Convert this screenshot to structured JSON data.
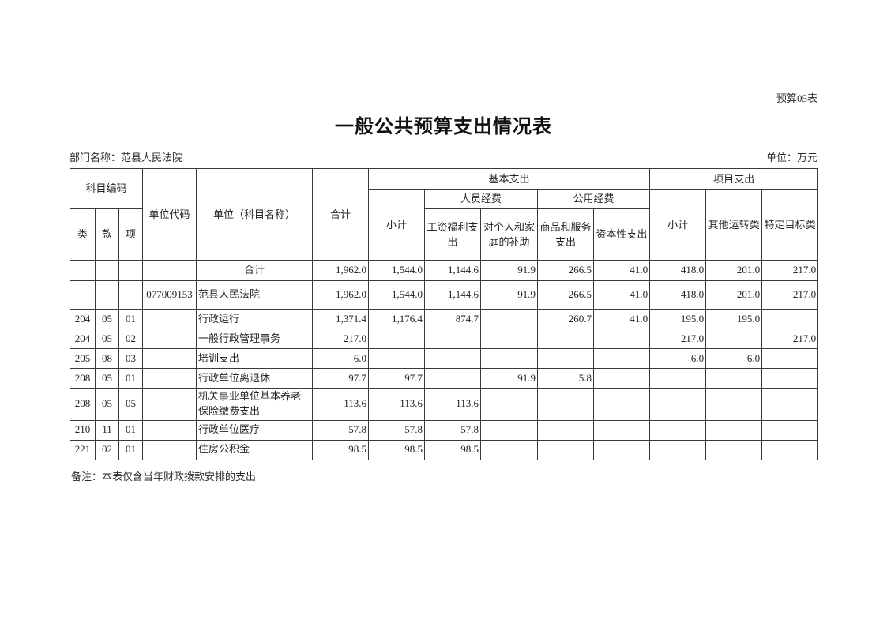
{
  "page": {
    "form_label": "预算05表",
    "title": "一般公共预算支出情况表",
    "department_label": "部门名称：范县人民法院",
    "unit_label": "单位：万元",
    "note": "备注：本表仅含当年财政拨款安排的支出"
  },
  "table": {
    "header": {
      "subject_code": "科目编码",
      "col_class": "类",
      "col_section": "款",
      "col_item": "项",
      "unit_code": "单位代码",
      "unit_name": "单位（科目名称）",
      "total": "合计",
      "basic_expenditure": "基本支出",
      "basic_subtotal": "小计",
      "personnel_funds": "人员经费",
      "wage_welfare": "工资福利支出",
      "family_subsidy": "对个人和家庭的补助",
      "public_funds": "公用经费",
      "goods_services": "商品和服务支出",
      "capital": "资本性支出",
      "project_expenditure": "项目支出",
      "project_subtotal": "小计",
      "other_operation": "其他运转类",
      "specific_target": "特定目标类"
    },
    "rows": [
      {
        "lei": "",
        "kuan": "",
        "xiang": "",
        "code": "",
        "name": "合计",
        "name_align": "center",
        "total": "1,962.0",
        "basic_subtotal": "1,544.0",
        "wage": "1,144.6",
        "subsidy": "91.9",
        "goods": "266.5",
        "capital": "41.0",
        "proj_subtotal": "418.0",
        "other": "201.0",
        "specific": "217.0"
      },
      {
        "lei": "",
        "kuan": "",
        "xiang": "",
        "code": "077009153",
        "name": "范县人民法院",
        "name_align": "left",
        "total": "1,962.0",
        "basic_subtotal": "1,544.0",
        "wage": "1,144.6",
        "subsidy": "91.9",
        "goods": "266.5",
        "capital": "41.0",
        "proj_subtotal": "418.0",
        "other": "201.0",
        "specific": "217.0"
      },
      {
        "lei": "204",
        "kuan": "05",
        "xiang": "01",
        "code": "",
        "name": "行政运行",
        "name_align": "left",
        "total": "1,371.4",
        "basic_subtotal": "1,176.4",
        "wage": "874.7",
        "subsidy": "",
        "goods": "260.7",
        "capital": "41.0",
        "proj_subtotal": "195.0",
        "other": "195.0",
        "specific": ""
      },
      {
        "lei": "204",
        "kuan": "05",
        "xiang": "02",
        "code": "",
        "name": "一般行政管理事务",
        "name_align": "left",
        "total": "217.0",
        "basic_subtotal": "",
        "wage": "",
        "subsidy": "",
        "goods": "",
        "capital": "",
        "proj_subtotal": "217.0",
        "other": "",
        "specific": "217.0"
      },
      {
        "lei": "205",
        "kuan": "08",
        "xiang": "03",
        "code": "",
        "name": "培训支出",
        "name_align": "left",
        "total": "6.0",
        "basic_subtotal": "",
        "wage": "",
        "subsidy": "",
        "goods": "",
        "capital": "",
        "proj_subtotal": "6.0",
        "other": "6.0",
        "specific": ""
      },
      {
        "lei": "208",
        "kuan": "05",
        "xiang": "01",
        "code": "",
        "name": "行政单位离退休",
        "name_align": "left",
        "total": "97.7",
        "basic_subtotal": "97.7",
        "wage": "",
        "subsidy": "91.9",
        "goods": "5.8",
        "capital": "",
        "proj_subtotal": "",
        "other": "",
        "specific": ""
      },
      {
        "lei": "208",
        "kuan": "05",
        "xiang": "05",
        "code": "",
        "name": "机关事业单位基本养老保险缴费支出",
        "name_align": "left",
        "total": "113.6",
        "basic_subtotal": "113.6",
        "wage": "113.6",
        "subsidy": "",
        "goods": "",
        "capital": "",
        "proj_subtotal": "",
        "other": "",
        "specific": ""
      },
      {
        "lei": "210",
        "kuan": "11",
        "xiang": "01",
        "code": "",
        "name": "行政单位医疗",
        "name_align": "left",
        "total": "57.8",
        "basic_subtotal": "57.8",
        "wage": "57.8",
        "subsidy": "",
        "goods": "",
        "capital": "",
        "proj_subtotal": "",
        "other": "",
        "specific": ""
      },
      {
        "lei": "221",
        "kuan": "02",
        "xiang": "01",
        "code": "",
        "name": "住房公积金",
        "name_align": "left",
        "total": "98.5",
        "basic_subtotal": "98.5",
        "wage": "98.5",
        "subsidy": "",
        "goods": "",
        "capital": "",
        "proj_subtotal": "",
        "other": "",
        "specific": ""
      }
    ]
  }
}
